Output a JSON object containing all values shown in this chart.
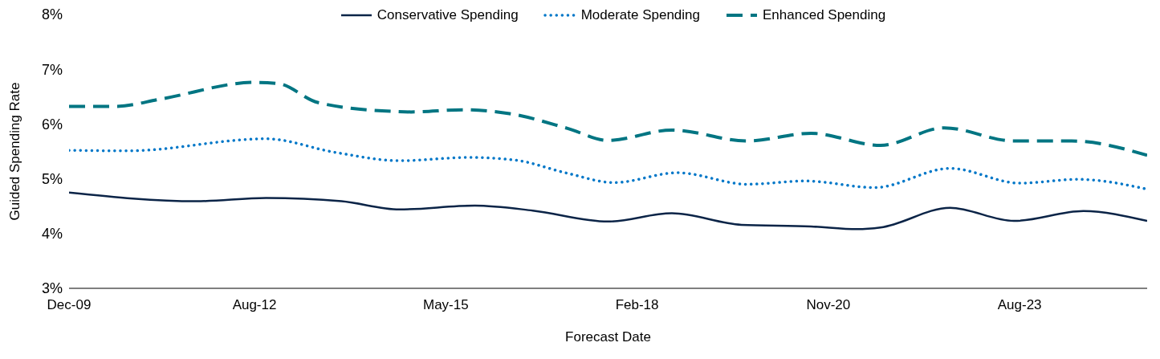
{
  "chart_data": {
    "type": "line",
    "xlabel": "Forecast Date",
    "ylabel": "Guided Spending Rate",
    "xlim": [
      "2009-12",
      "2025-06"
    ],
    "xticks": [
      {
        "value": "2009-12",
        "label": "Dec-09"
      },
      {
        "value": "2012-08",
        "label": "Aug-12"
      },
      {
        "value": "2015-05",
        "label": "May-15"
      },
      {
        "value": "2018-02",
        "label": "Feb-18"
      },
      {
        "value": "2020-11",
        "label": "Nov-20"
      },
      {
        "value": "2023-08",
        "label": "Aug-23"
      }
    ],
    "ylim": [
      3,
      8
    ],
    "yticks": [
      {
        "value": 3,
        "label": "3%"
      },
      {
        "value": 4,
        "label": "4%"
      },
      {
        "value": 5,
        "label": "5%"
      },
      {
        "value": 6,
        "label": "6%"
      },
      {
        "value": 7,
        "label": "7%"
      },
      {
        "value": 8,
        "label": "8%"
      }
    ],
    "legend": "top",
    "marker": "none",
    "series": [
      {
        "name": "Conservative Spending",
        "color": "#0b2447",
        "line_style": "solid",
        "x": [
          "2009-12",
          "2011-10",
          "2012-10",
          "2013-11",
          "2014-09",
          "2015-10",
          "2016-08",
          "2017-09",
          "2018-08",
          "2019-08",
          "2020-08",
          "2021-04",
          "2021-08",
          "2022-08",
          "2023-07",
          "2024-07",
          "2025-06"
        ],
        "values": [
          4.75,
          4.59,
          4.65,
          4.59,
          4.44,
          4.51,
          4.42,
          4.22,
          4.37,
          4.16,
          4.13,
          4.08,
          4.11,
          4.47,
          4.23,
          4.41,
          4.23
        ]
      },
      {
        "name": "Moderate Spending",
        "color": "#0077c8",
        "line_style": "dotted",
        "x": [
          "2009-12",
          "2010-10",
          "2012-10",
          "2013-10",
          "2014-09",
          "2015-09",
          "2016-05",
          "2017-02",
          "2017-10",
          "2018-09",
          "2019-09",
          "2020-07",
          "2021-07",
          "2022-08",
          "2023-08",
          "2024-06",
          "2025-06"
        ],
        "values": [
          5.52,
          5.51,
          5.73,
          5.48,
          5.33,
          5.39,
          5.34,
          5.1,
          4.93,
          5.11,
          4.9,
          4.96,
          4.84,
          5.19,
          4.92,
          4.99,
          4.81
        ]
      },
      {
        "name": "Enhanced Spending",
        "color": "#007582",
        "line_style": "dashed",
        "x": [
          "2009-12",
          "2010-08",
          "2011-04",
          "2012-08",
          "2012-12",
          "2013-07",
          "2014-08",
          "2014-11",
          "2015-08",
          "2016-04",
          "2017-02",
          "2017-09",
          "2018-08",
          "2019-09",
          "2020-08",
          "2021-08",
          "2022-07",
          "2023-07",
          "2024-05",
          "2025-06"
        ],
        "values": [
          6.32,
          6.32,
          6.46,
          6.76,
          6.74,
          6.39,
          6.23,
          6.22,
          6.26,
          6.19,
          5.92,
          5.7,
          5.89,
          5.69,
          5.83,
          5.61,
          5.93,
          5.69,
          5.69,
          5.43
        ]
      }
    ]
  }
}
